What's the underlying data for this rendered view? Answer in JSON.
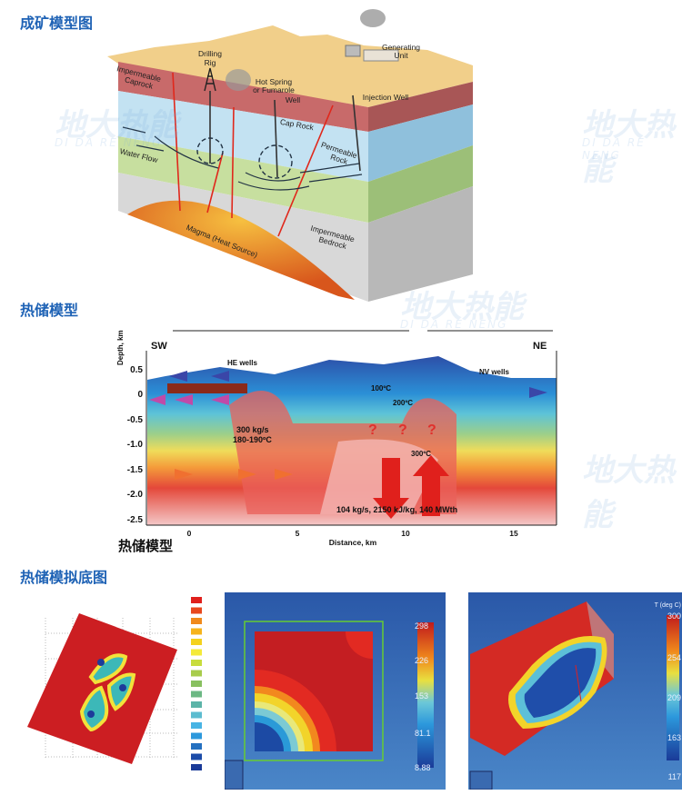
{
  "sections": {
    "ore_model_title": "成矿模型图",
    "reservoir_model_title": "热储模型",
    "simulation_title": "热储模拟底图"
  },
  "geology": {
    "labels": {
      "drilling_rig": [
        "Drilling",
        "Rig"
      ],
      "generating_unit": [
        "Generating",
        "Unit"
      ],
      "hot_spring": [
        "Hot Spring",
        "or Fumarole"
      ],
      "well": "Well",
      "injection_well": "Injection Well",
      "caprock_left": [
        "Impermeable",
        "Caprock"
      ],
      "cap_rock": "Cap Rock",
      "permeable_rock": [
        "Permeable",
        "Rock"
      ],
      "water_flow": "Water Flow",
      "magma": "Magma (Heat Source)",
      "bedrock": [
        "Impermeable",
        "Bedrock"
      ]
    },
    "colors": {
      "surface": "#f1cf8a",
      "caprock": "#c86a6a",
      "permeable": "#c3e2f2",
      "green": "#c7df9f",
      "bedrock": "#d8d8d8",
      "magma": "#e8772a"
    }
  },
  "cross_section": {
    "sw": "SW",
    "ne": "NE",
    "he_wells": "HE wells",
    "nv_wells": "NV wells",
    "y_axis_label": "Depth, km",
    "x_axis_label": "Distance, km",
    "y_ticks": [
      "0.5",
      "0",
      "-0.5",
      "-1.0",
      "-1.5",
      "-2.0",
      "-2.5"
    ],
    "x_ticks": [
      "0",
      "5",
      "10",
      "15"
    ],
    "iso_100": "100ºC",
    "iso_200": "200ºC",
    "iso_300": "300ºC",
    "flow_rate": [
      "300 kg/s",
      "180-190ºC"
    ],
    "question_marks": [
      "?",
      "?",
      "?"
    ],
    "output_note": "104 kg/s, 2150 kJ/kg, 140 MWth",
    "caption": "热储模型"
  },
  "simulation": {
    "panel2_colorbar": [
      "298",
      "226",
      "153",
      "81.1",
      "8.88"
    ],
    "panel3_colorbar": [
      "300",
      "254",
      "209",
      "163",
      "117"
    ],
    "panel3_unit": "T (deg C)",
    "legend_colors": [
      "#e0201c",
      "#e8481e",
      "#f08a1c",
      "#f6b41c",
      "#f4d21e",
      "#f4ea3a",
      "#c8dc3c",
      "#a8cc4c",
      "#88c060",
      "#6cb884",
      "#5cb4a8",
      "#5cbcd0",
      "#48b4e4",
      "#2c98dc",
      "#2470c0",
      "#1c4ca8",
      "#1a3a98"
    ]
  },
  "watermark": {
    "cn": "地大热能",
    "en": "DI DA RE NENG"
  }
}
